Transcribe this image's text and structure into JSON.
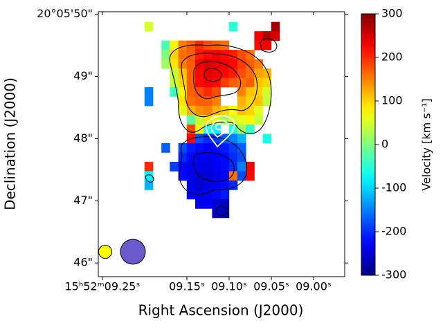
{
  "chart_data": {
    "type": "heatmap",
    "xlabel": "Right Ascension (J2000)",
    "ylabel": "Declination (J2000)",
    "colorbar_label": "Velocity [km s⁻¹]",
    "colormap": "jet",
    "xlim": [
      9.2549,
      8.9631
    ],
    "ylim": [
      45.78,
      50.04
    ],
    "xticks": [
      {
        "value": 9.25,
        "label": "15ʰ52ᵐ09.25ˢ"
      },
      {
        "value": 9.15,
        "label": "09.15ˢ"
      },
      {
        "value": 9.1,
        "label": "09.10ˢ"
      },
      {
        "value": 9.05,
        "label": "09.05ˢ"
      },
      {
        "value": 9.0,
        "label": "09.00ˢ"
      }
    ],
    "yticks": [
      {
        "value": 50,
        "label": "20°05'50\""
      },
      {
        "value": 49,
        "label": "49\""
      },
      {
        "value": 48,
        "label": "48\""
      },
      {
        "value": 47,
        "label": "47\""
      },
      {
        "value": 46,
        "label": "46\""
      }
    ],
    "clim": [
      -300,
      300
    ],
    "cticks": [
      300,
      200,
      100,
      0,
      -100,
      -200,
      -300
    ],
    "x": [
      9.195,
      9.185,
      9.175,
      9.165,
      9.155,
      9.145,
      9.135,
      9.125,
      9.115,
      9.105,
      9.095,
      9.085,
      9.075,
      9.065,
      9.055,
      9.045
    ],
    "y": [
      49.8,
      49.65,
      49.5,
      49.35,
      49.2,
      49.05,
      48.9,
      48.75,
      48.6,
      48.45,
      48.3,
      48.15,
      48.0,
      47.85,
      47.7,
      47.55,
      47.4,
      47.25,
      47.1,
      46.95,
      46.8
    ],
    "values": [
      [
        50,
        null,
        null,
        null,
        null,
        null,
        null,
        null,
        null,
        null,
        -50,
        null,
        null,
        null,
        null,
        280
      ],
      [
        null,
        null,
        null,
        null,
        null,
        null,
        null,
        null,
        null,
        null,
        null,
        null,
        null,
        230,
        270,
        250
      ],
      [
        null,
        null,
        -30,
        80,
        150,
        170,
        200,
        180,
        170,
        160,
        null,
        null,
        null,
        220,
        230,
        null
      ],
      [
        null,
        null,
        0,
        100,
        160,
        170,
        210,
        220,
        230,
        220,
        210,
        180,
        160,
        null,
        null,
        null
      ],
      [
        null,
        null,
        20,
        90,
        150,
        170,
        230,
        250,
        240,
        230,
        220,
        190,
        170,
        150,
        null,
        null
      ],
      [
        null,
        null,
        null,
        40,
        110,
        170,
        220,
        240,
        230,
        220,
        210,
        180,
        160,
        130,
        120,
        null
      ],
      [
        null,
        null,
        null,
        40,
        100,
        170,
        220,
        230,
        220,
        190,
        170,
        160,
        170,
        110,
        100,
        null
      ],
      [
        -150,
        null,
        null,
        -40,
        80,
        170,
        180,
        200,
        180,
        null,
        null,
        150,
        110,
        100,
        50,
        null
      ],
      [
        -150,
        null,
        null,
        null,
        90,
        160,
        170,
        170,
        150,
        null,
        null,
        120,
        100,
        110,
        40,
        null
      ],
      [
        null,
        null,
        null,
        null,
        60,
        120,
        140,
        150,
        120,
        100,
        70,
        110,
        100,
        60,
        null,
        null
      ],
      [
        null,
        null,
        null,
        null,
        null,
        -20,
        40,
        90,
        60,
        20,
        50,
        60,
        80,
        40,
        null,
        null
      ],
      [
        null,
        null,
        null,
        null,
        null,
        180,
        80,
        -60,
        -80,
        null,
        -50,
        20,
        -40,
        null,
        null,
        null
      ],
      [
        null,
        null,
        null,
        null,
        null,
        220,
        -180,
        -200,
        -190,
        -170,
        -150,
        -120,
        null,
        null,
        -60,
        null
      ],
      [
        null,
        null,
        -170,
        null,
        -180,
        -210,
        -220,
        -230,
        -220,
        -210,
        -190,
        -170,
        null,
        null,
        null,
        null
      ],
      [
        null,
        null,
        null,
        null,
        -200,
        -220,
        -230,
        -240,
        -230,
        -220,
        -200,
        -180,
        null,
        null,
        null,
        null
      ],
      [
        200,
        null,
        null,
        -190,
        -220,
        -230,
        -240,
        -240,
        -230,
        -220,
        -200,
        -150,
        230,
        null,
        null,
        null
      ],
      [
        -80,
        null,
        null,
        null,
        -220,
        -240,
        -250,
        -250,
        -240,
        -230,
        160,
        -180,
        220,
        null,
        null,
        null
      ],
      [
        -120,
        null,
        null,
        null,
        null,
        -240,
        -250,
        -240,
        -230,
        -220,
        -200,
        null,
        null,
        null,
        null,
        null
      ],
      [
        null,
        null,
        null,
        null,
        null,
        -230,
        -240,
        -230,
        -220,
        -210,
        null,
        null,
        null,
        null,
        null,
        null
      ],
      [
        null,
        null,
        null,
        null,
        null,
        null,
        -240,
        -230,
        -250,
        -260,
        null,
        null,
        null,
        null,
        null,
        null
      ],
      [
        null,
        null,
        null,
        null,
        null,
        null,
        null,
        null,
        -260,
        -270,
        null,
        null,
        null,
        null,
        null,
        null
      ]
    ]
  }
}
